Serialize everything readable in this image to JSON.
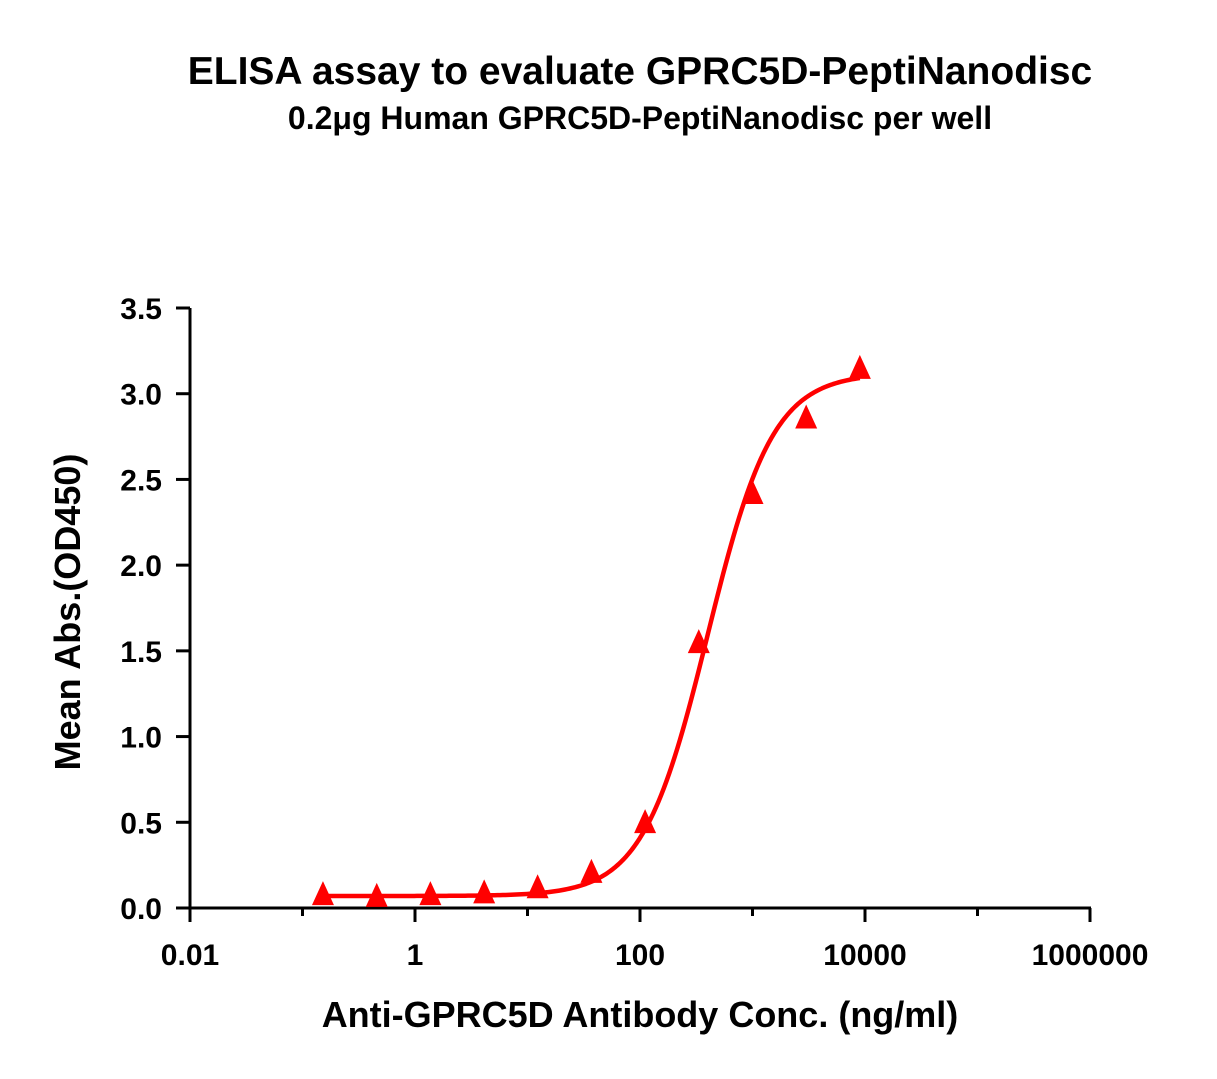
{
  "chart_data": {
    "type": "scatter",
    "title": "ELISA assay to evaluate GPRC5D-PeptiNanodisc",
    "subtitle": "0.2μg Human GPRC5D-PeptiNanodisc per well",
    "xlabel": "Anti-GPRC5D Antibody Conc. (ng/ml)",
    "ylabel": "Mean Abs.(OD450)",
    "x_scale": "log",
    "xlim": [
      0.01,
      1000000
    ],
    "ylim": [
      0,
      3.5
    ],
    "x_ticks": [
      0.01,
      1,
      100,
      10000,
      1000000
    ],
    "x_tick_labels": [
      "0.01",
      "1",
      "100",
      "10000",
      "1000000"
    ],
    "y_ticks": [
      0,
      0.5,
      1,
      1.5,
      2,
      2.5,
      3,
      3.5
    ],
    "y_tick_labels": [
      "0.0",
      "0.5",
      "1.0",
      "1.5",
      "2.0",
      "2.5",
      "3.0",
      "3.5"
    ],
    "grid": false,
    "legend": "none",
    "series": [
      {
        "color": "#ff0000",
        "marker": "triangle",
        "points": [
          {
            "x": 0.152,
            "y": 0.07
          },
          {
            "x": 0.457,
            "y": 0.06
          },
          {
            "x": 1.37,
            "y": 0.07
          },
          {
            "x": 4.12,
            "y": 0.08
          },
          {
            "x": 12.3,
            "y": 0.11
          },
          {
            "x": 37.0,
            "y": 0.2
          },
          {
            "x": 111,
            "y": 0.49
          },
          {
            "x": 333,
            "y": 1.54
          },
          {
            "x": 1000,
            "y": 2.41
          },
          {
            "x": 3000,
            "y": 2.85
          },
          {
            "x": 9000,
            "y": 3.14
          }
        ],
        "fit": {
          "type": "4PL",
          "bottom": 0.07,
          "top": 3.12,
          "ec50": 400,
          "hill": 1.5,
          "x_range": [
            0.152,
            9000
          ]
        }
      }
    ]
  }
}
